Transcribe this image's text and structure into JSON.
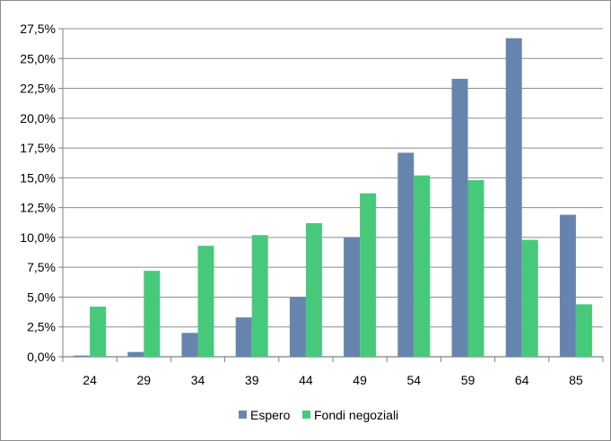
{
  "chart_data": {
    "type": "bar",
    "title": "",
    "xlabel": "",
    "ylabel": "",
    "categories": [
      "24",
      "29",
      "34",
      "39",
      "44",
      "49",
      "54",
      "59",
      "64",
      "85"
    ],
    "series": [
      {
        "name": "Espero",
        "color": "#6685AE",
        "values": [
          0.1,
          0.4,
          2.0,
          3.3,
          5.0,
          10.0,
          17.1,
          23.3,
          26.7,
          11.9
        ]
      },
      {
        "name": "Fondi negoziali",
        "color": "#47C97B",
        "values": [
          4.2,
          7.2,
          9.3,
          10.2,
          11.2,
          13.7,
          15.2,
          14.8,
          9.8,
          4.4
        ]
      }
    ],
    "ylim": [
      0,
      27.5
    ],
    "y_ticks": [
      0,
      2.5,
      5,
      7.5,
      10,
      12.5,
      15,
      17.5,
      20,
      22.5,
      25,
      27.5
    ],
    "y_tick_labels": [
      "0,0%",
      "2,5%",
      "5,0%",
      "7,5%",
      "10,0%",
      "12,5%",
      "15,0%",
      "17,5%",
      "20,0%",
      "22,5%",
      "25,0%",
      "27,5%"
    ],
    "grid": true,
    "legend": "bottom"
  }
}
